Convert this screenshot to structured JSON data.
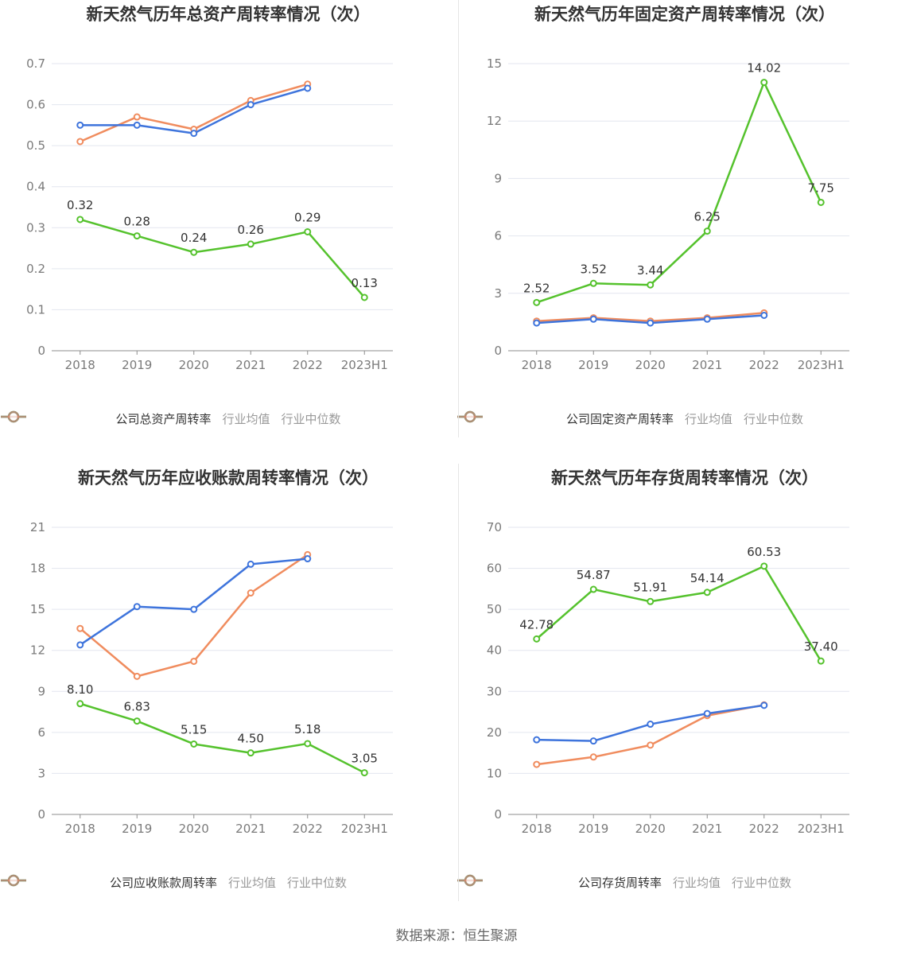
{
  "source": "数据来源：恒生聚源",
  "colors": {
    "company": "#55c22d",
    "avg": "#3e74dc",
    "median": "#f08c5e"
  },
  "chart_data": [
    {
      "type": "line",
      "title": "新天然气历年总资产周转率情况（次）",
      "categories": [
        "2018",
        "2019",
        "2020",
        "2021",
        "2022",
        "2023H1"
      ],
      "ylim": [
        0,
        0.7
      ],
      "yticks": [
        "0",
        "0.1",
        "0.2",
        "0.3",
        "0.4",
        "0.5",
        "0.6",
        "0.7"
      ],
      "series": [
        {
          "name": "公司总资产周转率",
          "values": [
            0.32,
            0.28,
            0.24,
            0.26,
            0.29,
            0.13
          ],
          "labels": [
            "0.32",
            "0.28",
            "0.24",
            "0.26",
            "0.29",
            "0.13"
          ]
        },
        {
          "name": "行业均值",
          "values": [
            0.55,
            0.55,
            0.53,
            0.6,
            0.64,
            null
          ]
        },
        {
          "name": "行业中位数",
          "values": [
            0.51,
            0.57,
            0.54,
            0.61,
            0.65,
            null
          ]
        }
      ]
    },
    {
      "type": "line",
      "title": "新天然气历年固定资产周转率情况（次）",
      "categories": [
        "2018",
        "2019",
        "2020",
        "2021",
        "2022",
        "2023H1"
      ],
      "ylim": [
        0,
        15
      ],
      "yticks": [
        "0",
        "3",
        "6",
        "9",
        "12",
        "15"
      ],
      "series": [
        {
          "name": "公司固定资产周转率",
          "values": [
            2.52,
            3.52,
            3.44,
            6.25,
            14.02,
            7.75
          ],
          "labels": [
            "2.52",
            "3.52",
            "3.44",
            "6.25",
            "14.02",
            "7.75"
          ]
        },
        {
          "name": "行业均值",
          "values": [
            1.45,
            1.65,
            1.45,
            1.65,
            1.85,
            null
          ]
        },
        {
          "name": "行业中位数",
          "values": [
            1.55,
            1.72,
            1.55,
            1.72,
            1.98,
            null
          ]
        }
      ]
    },
    {
      "type": "line",
      "title": "新天然气历年应收账款周转率情况（次）",
      "categories": [
        "2018",
        "2019",
        "2020",
        "2021",
        "2022",
        "2023H1"
      ],
      "ylim": [
        0,
        21
      ],
      "yticks": [
        "0",
        "3",
        "6",
        "9",
        "12",
        "15",
        "18",
        "21"
      ],
      "series": [
        {
          "name": "公司应收账款周转率",
          "values": [
            8.1,
            6.83,
            5.15,
            4.5,
            5.18,
            3.05
          ],
          "labels": [
            "8.10",
            "6.83",
            "5.15",
            "4.50",
            "5.18",
            "3.05"
          ]
        },
        {
          "name": "行业均值",
          "values": [
            12.4,
            15.2,
            15.0,
            18.3,
            18.7,
            null
          ]
        },
        {
          "name": "行业中位数",
          "values": [
            13.6,
            10.1,
            11.2,
            16.2,
            19.0,
            null
          ]
        }
      ]
    },
    {
      "type": "line",
      "title": "新天然气历年存货周转率情况（次）",
      "categories": [
        "2018",
        "2019",
        "2020",
        "2021",
        "2022",
        "2023H1"
      ],
      "ylim": [
        0,
        70
      ],
      "yticks": [
        "0",
        "10",
        "20",
        "30",
        "40",
        "50",
        "60",
        "70"
      ],
      "series": [
        {
          "name": "公司存货周转率",
          "values": [
            42.78,
            54.87,
            51.91,
            54.14,
            60.53,
            37.4
          ],
          "labels": [
            "42.78",
            "54.87",
            "51.91",
            "54.14",
            "60.53",
            "37.40"
          ]
        },
        {
          "name": "行业均值",
          "values": [
            18.2,
            17.9,
            22.0,
            24.6,
            26.6,
            null
          ]
        },
        {
          "name": "行业中位数",
          "values": [
            12.2,
            14.0,
            16.9,
            24.1,
            26.7,
            null
          ]
        }
      ]
    }
  ]
}
